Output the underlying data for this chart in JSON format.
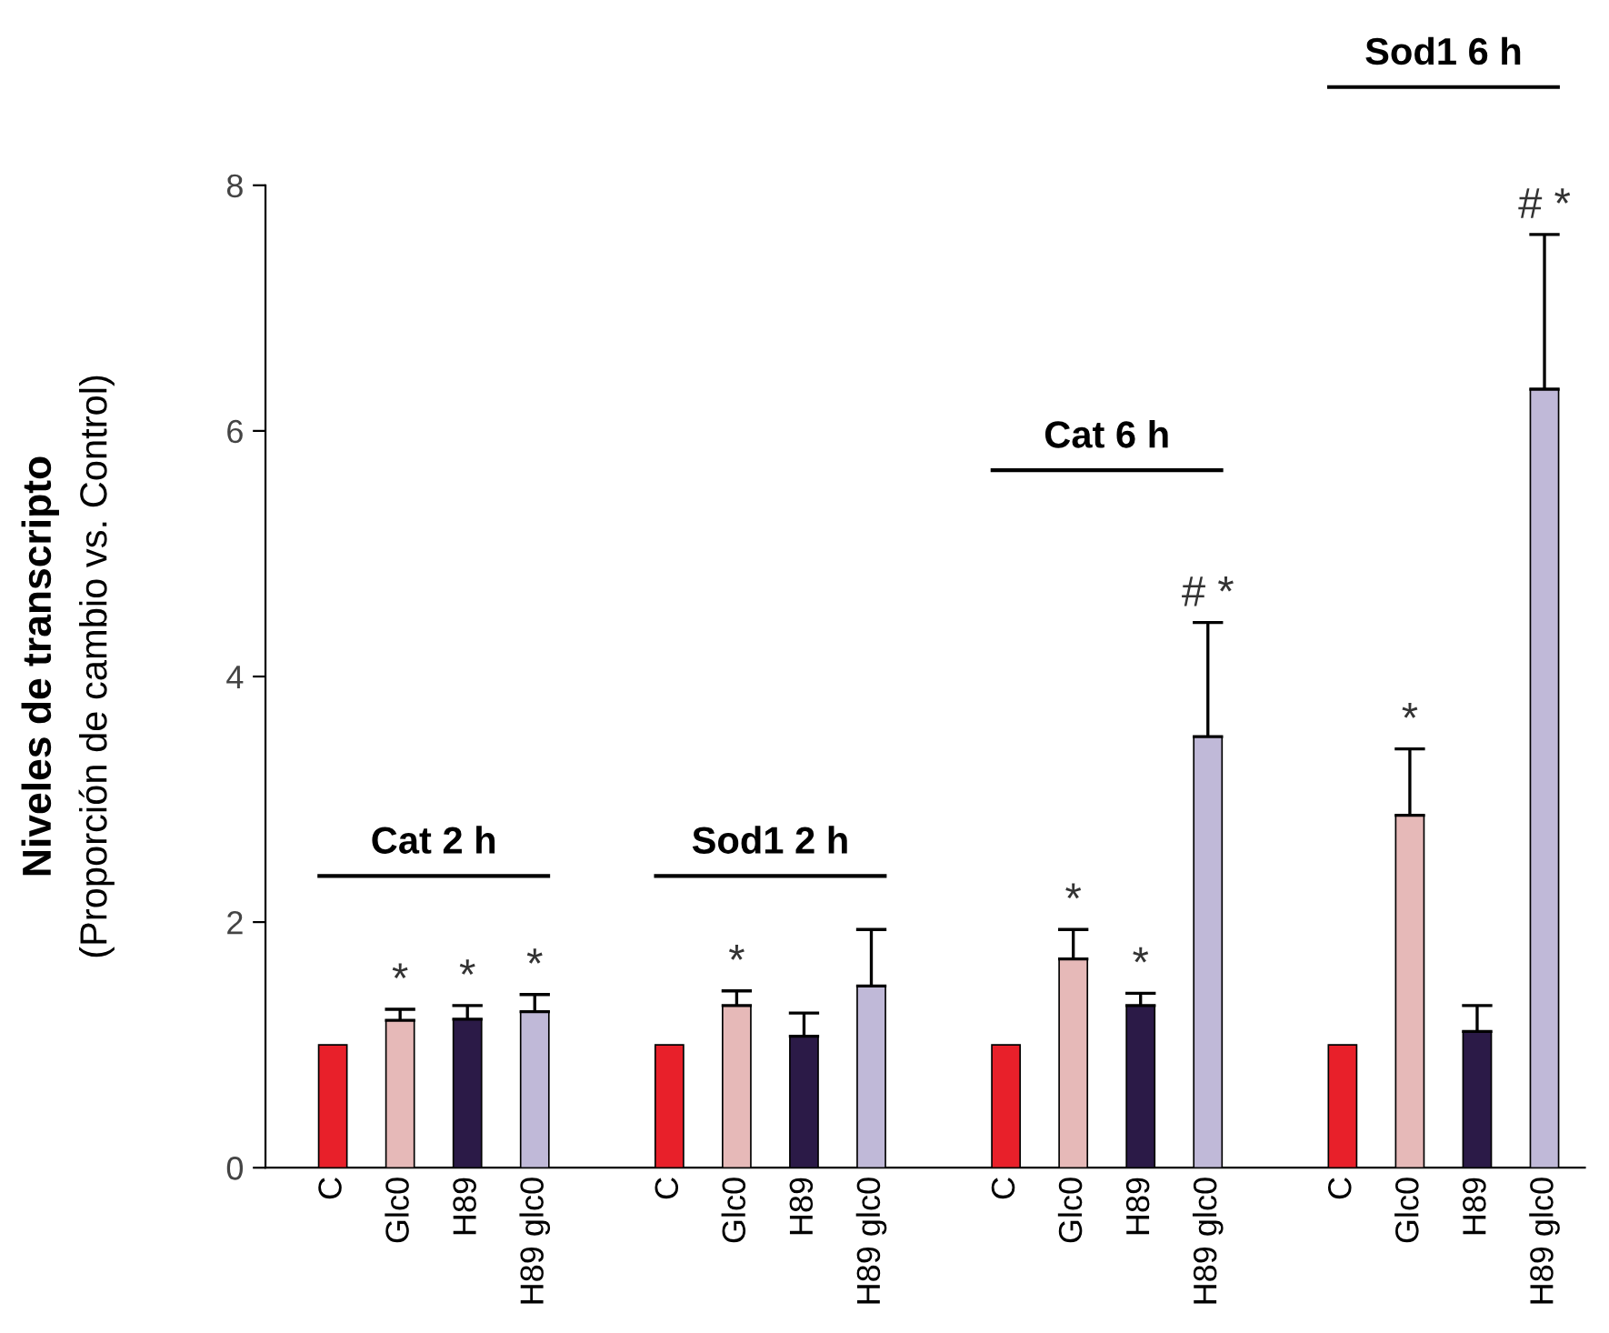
{
  "chart_data": {
    "type": "bar",
    "ylabel": "Niveles de transcripto\n(Proporción de cambio vs. Control)",
    "categories": [
      "C",
      "Glc0",
      "H89",
      "H89 glc0",
      null,
      "C",
      "Glc0",
      "H89",
      "H89 glc0",
      null,
      "C",
      "Glc0",
      "H89",
      "H89 glc0",
      null,
      "C",
      "Glc0",
      "H89",
      "H89 glc0"
    ],
    "values": [
      1.0,
      1.2,
      1.21,
      1.27,
      null,
      1.0,
      1.32,
      1.07,
      1.48,
      null,
      1.0,
      1.7,
      1.32,
      3.51,
      null,
      1.0,
      2.87,
      1.11,
      6.34
    ],
    "colors": [
      "#e8202a",
      "#e6b9b8",
      "#2b1a47",
      "#c0b9d8",
      null,
      "#e8202a",
      "#e6b9b8",
      "#2b1a47",
      "#c0b9d8",
      null,
      "#e8202a",
      "#e6b9b8",
      "#2b1a47",
      "#c0b9d8",
      null,
      "#e8202a",
      "#e6b9b8",
      "#2b1a47",
      "#c0b9d8"
    ],
    "errors": [
      null,
      [
        1.2,
        1.29
      ],
      [
        1.21,
        1.32
      ],
      [
        1.27,
        1.41
      ],
      null,
      null,
      [
        1.32,
        1.44
      ],
      [
        1.07,
        1.26
      ],
      [
        1.48,
        1.94
      ],
      null,
      null,
      [
        1.7,
        1.94
      ],
      [
        1.32,
        1.42
      ],
      [
        3.51,
        4.44
      ],
      null,
      null,
      [
        2.87,
        3.41
      ],
      [
        1.11,
        1.32
      ],
      [
        6.34,
        7.6
      ]
    ],
    "annotations": [
      "Cat 2 h",
      "Sod1 2 h",
      "Cat 6 h",
      "Sod1 6 h",
      "*",
      "*",
      "*",
      "*",
      "*",
      "*",
      "# *",
      "*",
      "# *"
    ],
    "ylim": [
      0,
      8
    ],
    "yticks": [
      0,
      2,
      4,
      6,
      8
    ],
    "grid": false,
    "legend": false
  }
}
